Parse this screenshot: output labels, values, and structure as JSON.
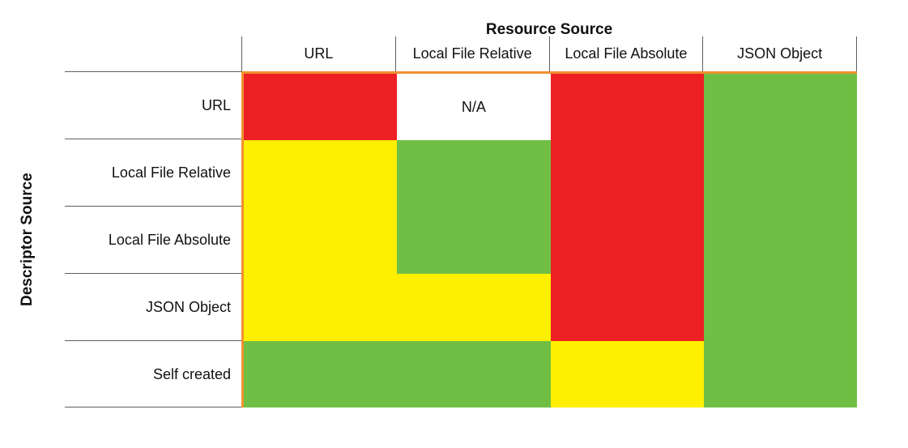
{
  "chart_data": {
    "type": "heatmap",
    "title": "Resource Source",
    "xlabel": "Resource Source",
    "ylabel": "Descriptor Source",
    "x_categories": [
      "URL",
      "Local File Relative",
      "Local File Absolute",
      "JSON Object"
    ],
    "y_categories": [
      "URL",
      "Local File Relative",
      "Local File Absolute",
      "JSON Object",
      "Self created"
    ],
    "values": [
      [
        "red",
        "na",
        "red",
        "green"
      ],
      [
        "yellow",
        "green",
        "red",
        "green"
      ],
      [
        "yellow",
        "green",
        "red",
        "green"
      ],
      [
        "yellow",
        "yellow",
        "red",
        "green"
      ],
      [
        "green",
        "green",
        "yellow",
        "green"
      ]
    ],
    "na_label": "N/A",
    "colors": {
      "red": "#ed2024",
      "yellow": "#ffef00",
      "green": "#70bf44",
      "na": "#ffffff",
      "border_accent": "#f0912f",
      "grid_line": "#5f5f5f"
    },
    "legend_position": "none",
    "grid": "outer-accent-top-left-only"
  }
}
